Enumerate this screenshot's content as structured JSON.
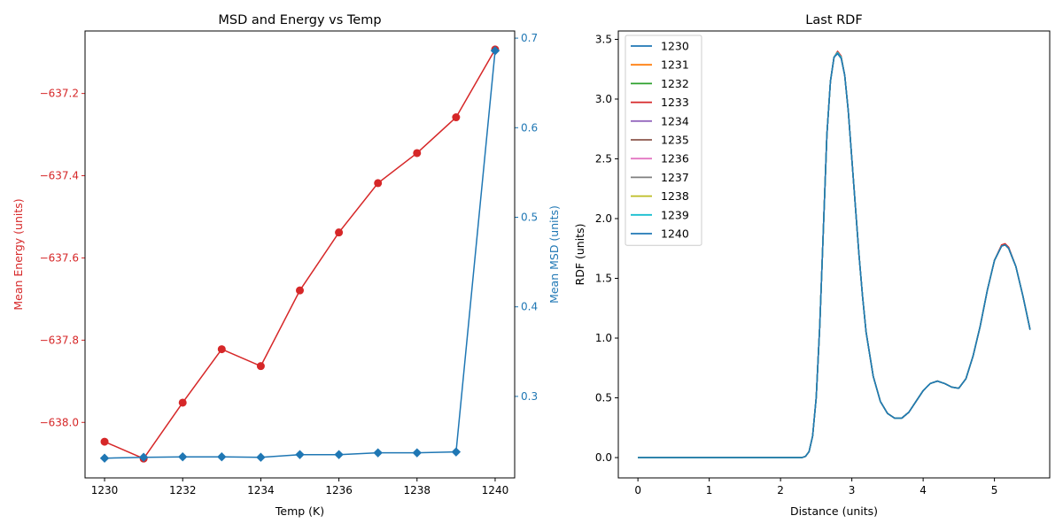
{
  "chart_data": [
    {
      "type": "line",
      "title": "MSD and Energy vs Temp",
      "xlabel": "Temp (K)",
      "ylabel_left": "Mean Energy (units)",
      "ylabel_right": "Mean MSD (units)",
      "x": [
        1230,
        1231,
        1232,
        1233,
        1234,
        1235,
        1236,
        1237,
        1238,
        1239,
        1240
      ],
      "xlim": [
        1229.5,
        1240.5
      ],
      "xticks": [
        1230,
        1232,
        1234,
        1236,
        1238,
        1240
      ],
      "grid": false,
      "series": [
        {
          "axis": "left",
          "color": "#d62728",
          "marker": "circle",
          "values": [
            -638.047,
            -638.088,
            -637.952,
            -637.822,
            -637.863,
            -637.679,
            -637.538,
            -637.418,
            -637.345,
            -637.258,
            -637.093
          ]
        },
        {
          "axis": "right",
          "color": "#1f77b4",
          "marker": "diamond",
          "values": [
            0.231,
            0.232,
            0.2325,
            0.2325,
            0.232,
            0.235,
            0.235,
            0.237,
            0.237,
            0.238,
            0.686
          ]
        }
      ],
      "ylim_left": [
        -638.135,
        -637.048
      ],
      "yticks_left": [
        -638.0,
        -637.8,
        -637.6,
        -637.4,
        -637.2
      ],
      "ytick_labels_left": [
        "−638.0",
        "−637.8",
        "−637.6",
        "−637.4",
        "−637.2"
      ],
      "ylim_right": [
        0.209,
        0.708
      ],
      "yticks_right": [
        0.3,
        0.4,
        0.5,
        0.6,
        0.7
      ],
      "ytick_labels_right": [
        "0.3",
        "0.4",
        "0.5",
        "0.6",
        "0.7"
      ]
    },
    {
      "type": "line",
      "title": "Last RDF",
      "xlabel": "Distance (units)",
      "ylabel": "RDF (units)",
      "xlim": [
        -0.275,
        5.775
      ],
      "ylim": [
        -0.17,
        3.57
      ],
      "xticks": [
        0,
        1,
        2,
        3,
        4,
        5
      ],
      "yticks": [
        0.0,
        0.5,
        1.0,
        1.5,
        2.0,
        2.5,
        3.0,
        3.5
      ],
      "ytick_labels": [
        "0.0",
        "0.5",
        "1.0",
        "1.5",
        "2.0",
        "2.5",
        "3.0",
        "3.5"
      ],
      "grid": false,
      "legend_position": "top-left",
      "x": [
        0,
        2.3,
        2.35,
        2.4,
        2.45,
        2.5,
        2.55,
        2.6,
        2.65,
        2.7,
        2.75,
        2.8,
        2.85,
        2.9,
        2.95,
        3.0,
        3.05,
        3.1,
        3.15,
        3.2,
        3.3,
        3.4,
        3.5,
        3.6,
        3.7,
        3.8,
        3.9,
        4.0,
        4.1,
        4.2,
        4.3,
        4.4,
        4.5,
        4.6,
        4.7,
        4.8,
        4.9,
        5.0,
        5.1,
        5.15,
        5.2,
        5.3,
        5.4,
        5.5
      ],
      "series": [
        {
          "name": "1230",
          "color": "#1f77b4",
          "values": [
            0,
            0,
            0.01,
            0.05,
            0.18,
            0.5,
            1.1,
            1.9,
            2.7,
            3.15,
            3.35,
            3.39,
            3.35,
            3.2,
            2.9,
            2.5,
            2.1,
            1.7,
            1.35,
            1.05,
            0.68,
            0.47,
            0.37,
            0.33,
            0.33,
            0.38,
            0.47,
            0.56,
            0.62,
            0.64,
            0.62,
            0.59,
            0.58,
            0.66,
            0.85,
            1.1,
            1.4,
            1.65,
            1.77,
            1.78,
            1.75,
            1.6,
            1.35,
            1.07
          ]
        },
        {
          "name": "1231",
          "color": "#ff7f0e",
          "values": [
            0,
            0,
            0.01,
            0.05,
            0.18,
            0.5,
            1.1,
            1.9,
            2.7,
            3.15,
            3.35,
            3.39,
            3.35,
            3.2,
            2.9,
            2.5,
            2.1,
            1.7,
            1.35,
            1.05,
            0.68,
            0.47,
            0.37,
            0.33,
            0.33,
            0.38,
            0.47,
            0.56,
            0.62,
            0.64,
            0.62,
            0.59,
            0.58,
            0.66,
            0.85,
            1.1,
            1.4,
            1.65,
            1.77,
            1.78,
            1.75,
            1.6,
            1.35,
            1.07
          ]
        },
        {
          "name": "1232",
          "color": "#2ca02c",
          "values": [
            0,
            0,
            0.01,
            0.05,
            0.18,
            0.5,
            1.1,
            1.9,
            2.7,
            3.15,
            3.35,
            3.39,
            3.35,
            3.2,
            2.9,
            2.5,
            2.1,
            1.7,
            1.35,
            1.05,
            0.68,
            0.47,
            0.37,
            0.33,
            0.33,
            0.38,
            0.47,
            0.56,
            0.62,
            0.64,
            0.62,
            0.59,
            0.58,
            0.66,
            0.85,
            1.1,
            1.4,
            1.65,
            1.77,
            1.78,
            1.75,
            1.6,
            1.35,
            1.07
          ]
        },
        {
          "name": "1233",
          "color": "#d62728",
          "values": [
            0,
            0,
            0.01,
            0.05,
            0.18,
            0.5,
            1.1,
            1.9,
            2.7,
            3.15,
            3.35,
            3.4,
            3.36,
            3.2,
            2.9,
            2.5,
            2.1,
            1.7,
            1.35,
            1.05,
            0.68,
            0.47,
            0.37,
            0.33,
            0.33,
            0.38,
            0.47,
            0.56,
            0.62,
            0.64,
            0.62,
            0.59,
            0.58,
            0.66,
            0.85,
            1.1,
            1.4,
            1.65,
            1.78,
            1.79,
            1.76,
            1.6,
            1.35,
            1.07
          ]
        },
        {
          "name": "1234",
          "color": "#9467bd",
          "values": [
            0,
            0,
            0.01,
            0.05,
            0.18,
            0.5,
            1.1,
            1.9,
            2.7,
            3.15,
            3.35,
            3.39,
            3.35,
            3.2,
            2.9,
            2.5,
            2.1,
            1.7,
            1.35,
            1.05,
            0.68,
            0.47,
            0.37,
            0.33,
            0.33,
            0.38,
            0.47,
            0.56,
            0.62,
            0.64,
            0.62,
            0.59,
            0.58,
            0.66,
            0.85,
            1.1,
            1.4,
            1.65,
            1.77,
            1.78,
            1.75,
            1.6,
            1.35,
            1.07
          ]
        },
        {
          "name": "1235",
          "color": "#8c564b",
          "values": [
            0,
            0,
            0.01,
            0.05,
            0.18,
            0.5,
            1.1,
            1.9,
            2.7,
            3.15,
            3.35,
            3.39,
            3.35,
            3.2,
            2.9,
            2.5,
            2.1,
            1.7,
            1.35,
            1.05,
            0.68,
            0.47,
            0.37,
            0.33,
            0.33,
            0.38,
            0.47,
            0.56,
            0.62,
            0.64,
            0.62,
            0.59,
            0.58,
            0.66,
            0.85,
            1.1,
            1.4,
            1.65,
            1.77,
            1.78,
            1.75,
            1.6,
            1.35,
            1.07
          ]
        },
        {
          "name": "1236",
          "color": "#e377c2",
          "values": [
            0,
            0,
            0.01,
            0.05,
            0.18,
            0.5,
            1.1,
            1.9,
            2.7,
            3.15,
            3.35,
            3.39,
            3.35,
            3.2,
            2.9,
            2.5,
            2.1,
            1.7,
            1.35,
            1.05,
            0.68,
            0.47,
            0.37,
            0.33,
            0.33,
            0.38,
            0.47,
            0.56,
            0.62,
            0.64,
            0.62,
            0.59,
            0.58,
            0.66,
            0.85,
            1.1,
            1.4,
            1.65,
            1.77,
            1.78,
            1.75,
            1.6,
            1.35,
            1.07
          ]
        },
        {
          "name": "1237",
          "color": "#7f7f7f",
          "values": [
            0,
            0,
            0.01,
            0.05,
            0.18,
            0.5,
            1.1,
            1.9,
            2.7,
            3.15,
            3.35,
            3.39,
            3.35,
            3.2,
            2.9,
            2.5,
            2.1,
            1.7,
            1.35,
            1.05,
            0.68,
            0.47,
            0.37,
            0.33,
            0.33,
            0.38,
            0.47,
            0.56,
            0.62,
            0.64,
            0.62,
            0.59,
            0.58,
            0.66,
            0.85,
            1.1,
            1.4,
            1.65,
            1.77,
            1.78,
            1.75,
            1.6,
            1.35,
            1.07
          ]
        },
        {
          "name": "1238",
          "color": "#bcbd22",
          "values": [
            0,
            0,
            0.01,
            0.05,
            0.18,
            0.5,
            1.1,
            1.9,
            2.7,
            3.15,
            3.35,
            3.39,
            3.35,
            3.2,
            2.9,
            2.5,
            2.1,
            1.7,
            1.35,
            1.05,
            0.68,
            0.47,
            0.37,
            0.33,
            0.33,
            0.38,
            0.47,
            0.56,
            0.62,
            0.64,
            0.62,
            0.59,
            0.58,
            0.66,
            0.85,
            1.1,
            1.4,
            1.65,
            1.77,
            1.78,
            1.75,
            1.6,
            1.35,
            1.07
          ]
        },
        {
          "name": "1239",
          "color": "#17becf",
          "values": [
            0,
            0,
            0.01,
            0.05,
            0.18,
            0.5,
            1.1,
            1.9,
            2.7,
            3.15,
            3.35,
            3.39,
            3.35,
            3.2,
            2.9,
            2.5,
            2.1,
            1.7,
            1.35,
            1.05,
            0.68,
            0.47,
            0.37,
            0.33,
            0.33,
            0.38,
            0.47,
            0.56,
            0.62,
            0.64,
            0.62,
            0.59,
            0.58,
            0.66,
            0.85,
            1.1,
            1.4,
            1.65,
            1.77,
            1.78,
            1.75,
            1.6,
            1.35,
            1.07
          ]
        },
        {
          "name": "1240",
          "color": "#1f77b4",
          "values": [
            0,
            0,
            0.01,
            0.05,
            0.18,
            0.5,
            1.1,
            1.9,
            2.7,
            3.15,
            3.35,
            3.38,
            3.34,
            3.2,
            2.9,
            2.5,
            2.1,
            1.7,
            1.35,
            1.05,
            0.68,
            0.47,
            0.37,
            0.33,
            0.33,
            0.38,
            0.47,
            0.56,
            0.62,
            0.64,
            0.62,
            0.59,
            0.58,
            0.66,
            0.85,
            1.1,
            1.4,
            1.65,
            1.77,
            1.78,
            1.75,
            1.6,
            1.35,
            1.07
          ]
        }
      ]
    }
  ]
}
